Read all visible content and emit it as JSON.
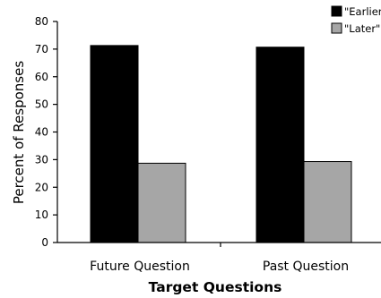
{
  "chart_data": {
    "type": "bar",
    "categories": [
      "Future Question",
      "Past Question"
    ],
    "series": [
      {
        "name": "\"Earlier\"",
        "values": [
          71.3,
          70.7
        ],
        "color": "#000000"
      },
      {
        "name": "\"Later\"",
        "values": [
          28.7,
          29.3
        ],
        "color": "#a6a6a6"
      }
    ],
    "xlabel": "Target Questions",
    "ylabel": "Percent of Responses",
    "ylim": [
      0,
      80
    ],
    "yticks": [
      0,
      10,
      20,
      30,
      40,
      50,
      60,
      70,
      80
    ],
    "grid": false,
    "legend": "top-right"
  }
}
